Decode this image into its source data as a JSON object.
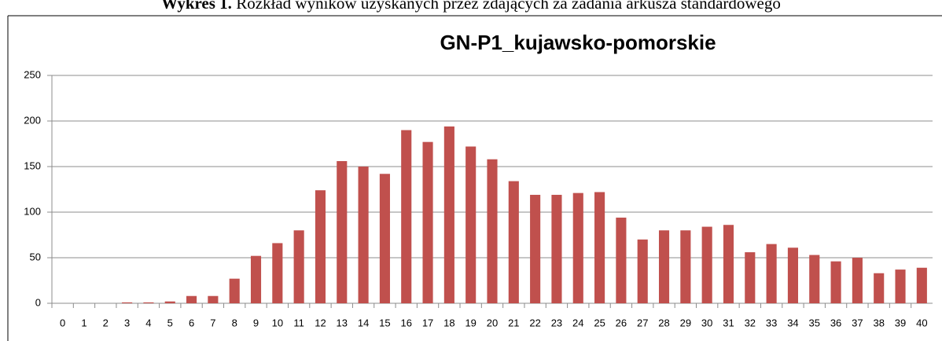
{
  "caption": {
    "label": "Wykres 1.",
    "text": "Rozkład wyników uzyskanych przez zdających za zadania arkusza standardowego"
  },
  "chart_data": {
    "type": "bar",
    "title": "GN-P1_kujawsko-pomorskie",
    "categories": [
      "0",
      "1",
      "2",
      "3",
      "4",
      "5",
      "6",
      "7",
      "8",
      "9",
      "10",
      "11",
      "12",
      "13",
      "14",
      "15",
      "16",
      "17",
      "18",
      "19",
      "20",
      "21",
      "22",
      "23",
      "24",
      "25",
      "26",
      "27",
      "28",
      "29",
      "30",
      "31",
      "32",
      "33",
      "34",
      "35",
      "36",
      "37",
      "38",
      "39",
      "40"
    ],
    "values": [
      0,
      0,
      0,
      1,
      1,
      2,
      8,
      8,
      27,
      52,
      66,
      80,
      124,
      156,
      150,
      142,
      190,
      177,
      194,
      172,
      158,
      134,
      119,
      119,
      121,
      122,
      94,
      70,
      80,
      80,
      84,
      86,
      56,
      65,
      61,
      53,
      46,
      50,
      33,
      37,
      39
    ],
    "color": "#c0504d",
    "ylim": [
      0,
      250
    ],
    "yticks": [
      0,
      50,
      100,
      150,
      200,
      250
    ],
    "grid": true
  }
}
